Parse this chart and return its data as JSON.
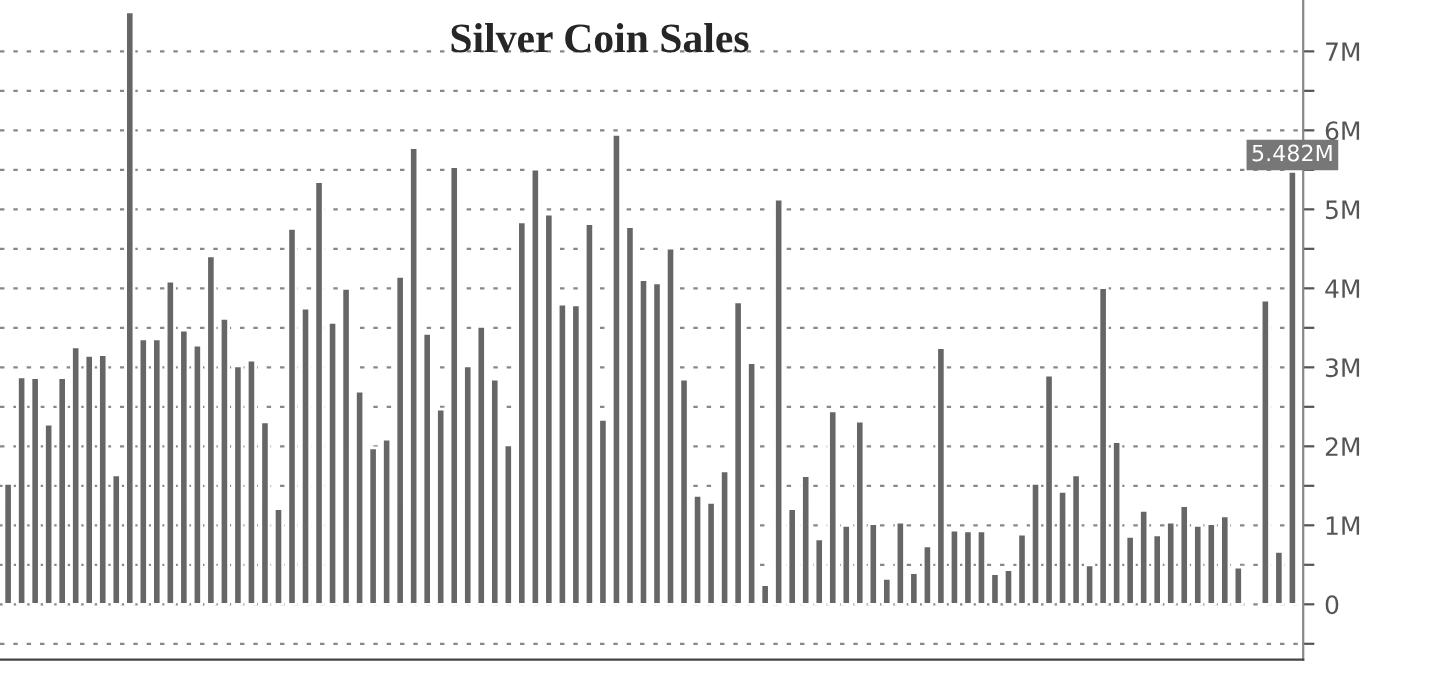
{
  "chart_data": {
    "type": "bar",
    "title": "Silver Coin Sales",
    "categories": [
      null,
      null,
      null,
      null,
      null,
      null,
      null,
      null,
      null,
      null,
      null,
      null,
      null,
      null,
      null,
      null,
      null,
      null,
      null,
      null,
      null,
      null,
      null,
      null,
      null,
      null,
      null,
      null,
      null,
      null,
      null,
      null,
      null,
      null,
      null,
      null,
      null,
      null,
      null,
      null,
      null,
      null,
      null,
      null,
      null,
      null,
      null,
      null,
      null,
      null,
      null,
      null,
      null,
      null,
      null,
      null,
      null,
      null,
      null,
      null,
      null,
      null,
      null,
      null,
      null,
      null,
      null,
      null,
      null,
      null,
      null,
      null,
      null,
      null,
      null,
      null,
      null,
      null,
      null,
      null,
      null,
      null,
      null,
      null,
      null,
      null,
      null,
      null,
      null,
      null,
      null,
      null,
      null,
      null,
      null,
      null
    ],
    "values": [
      1.53,
      2.88,
      2.87,
      2.28,
      2.87,
      3.26,
      3.15,
      3.16,
      1.64,
      7.5,
      3.36,
      3.36,
      4.09,
      3.47,
      3.28,
      4.41,
      3.62,
      3.02,
      3.09,
      2.31,
      1.21,
      4.76,
      3.75,
      5.35,
      3.57,
      4.0,
      2.7,
      1.98,
      2.09,
      4.15,
      5.78,
      3.43,
      2.47,
      5.54,
      3.02,
      3.52,
      2.85,
      2.02,
      4.84,
      5.51,
      4.94,
      3.8,
      3.79,
      4.82,
      2.34,
      5.95,
      4.78,
      4.11,
      4.07,
      4.51,
      2.85,
      1.38,
      1.29,
      1.69,
      3.83,
      3.06,
      0.25,
      5.13,
      1.21,
      1.63,
      0.83,
      2.45,
      1.0,
      2.32,
      1.02,
      0.33,
      1.04,
      0.4,
      0.74,
      3.25,
      0.94,
      0.93,
      0.93,
      0.39,
      0.44,
      0.89,
      1.53,
      2.9,
      1.43,
      1.64,
      0.5,
      4.01,
      2.06,
      0.86,
      1.19,
      0.88,
      1.04,
      1.25,
      1.0,
      1.02,
      1.12,
      0.47,
      null,
      3.85,
      0.67,
      5.482
    ],
    "value_labels": [
      null,
      null,
      null,
      null,
      null,
      null,
      null,
      null,
      null,
      null,
      null,
      null,
      null,
      null,
      null,
      null,
      null,
      null,
      null,
      null,
      null,
      null,
      null,
      null,
      null,
      null,
      null,
      null,
      null,
      null,
      null,
      null,
      null,
      null,
      null,
      null,
      null,
      null,
      null,
      null,
      null,
      null,
      null,
      null,
      null,
      null,
      null,
      null,
      null,
      null,
      null,
      null,
      null,
      null,
      null,
      null,
      null,
      null,
      null,
      null,
      null,
      null,
      null,
      null,
      null,
      null,
      null,
      null,
      null,
      null,
      null,
      null,
      null,
      null,
      null,
      null,
      null,
      null,
      null,
      null,
      null,
      null,
      null,
      null,
      null,
      null,
      null,
      null,
      null,
      null,
      null,
      null,
      null,
      null,
      null,
      "5.482M"
    ],
    "color": "#666666",
    "ylim": [
      -0.7,
      7.65
    ],
    "yticks": [
      {
        "value": -0.5,
        "label": null
      },
      {
        "value": 0,
        "label": "0"
      },
      {
        "value": 0.5,
        "label": null
      },
      {
        "value": 1,
        "label": "1M"
      },
      {
        "value": 1.5,
        "label": null
      },
      {
        "value": 2,
        "label": "2M"
      },
      {
        "value": 2.5,
        "label": null
      },
      {
        "value": 3,
        "label": "3M"
      },
      {
        "value": 3.5,
        "label": null
      },
      {
        "value": 4,
        "label": "4M"
      },
      {
        "value": 4.5,
        "label": null
      },
      {
        "value": 5,
        "label": "5M"
      },
      {
        "value": 5.5,
        "label": null
      },
      {
        "value": 6,
        "label": "6M"
      },
      {
        "value": 6.5,
        "label": null
      },
      {
        "value": 7,
        "label": "7M"
      }
    ],
    "grid": "y",
    "tick_labels": "y"
  }
}
